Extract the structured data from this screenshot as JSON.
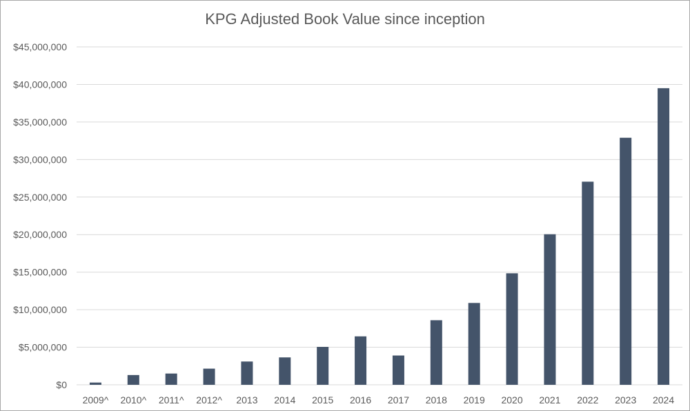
{
  "chart_data": {
    "type": "bar",
    "title": "KPG Adjusted Book Value since inception",
    "xlabel": "",
    "ylabel": "",
    "categories": [
      "2009^",
      "2010^",
      "2011^",
      "2012^",
      "2013",
      "2014",
      "2015",
      "2016",
      "2017",
      "2018",
      "2019",
      "2020",
      "2021",
      "2022",
      "2023",
      "2024"
    ],
    "values": [
      300000,
      1300000,
      1500000,
      2150000,
      3100000,
      3650000,
      5050000,
      6450000,
      3900000,
      8600000,
      10900000,
      14850000,
      20050000,
      27050000,
      32900000,
      39500000
    ],
    "ylim": [
      0,
      45000000
    ],
    "yticks": [
      0,
      5000000,
      10000000,
      15000000,
      20000000,
      25000000,
      30000000,
      35000000,
      40000000,
      45000000
    ],
    "ytick_labels": [
      "$0",
      "$5,000,000",
      "$10,000,000",
      "$15,000,000",
      "$20,000,000",
      "$25,000,000",
      "$30,000,000",
      "$35,000,000",
      "$40,000,000",
      "$45,000,000"
    ],
    "grid": true,
    "bar_color": "#44546a",
    "grid_color": "#d9d9d9",
    "text_color": "#595959"
  }
}
